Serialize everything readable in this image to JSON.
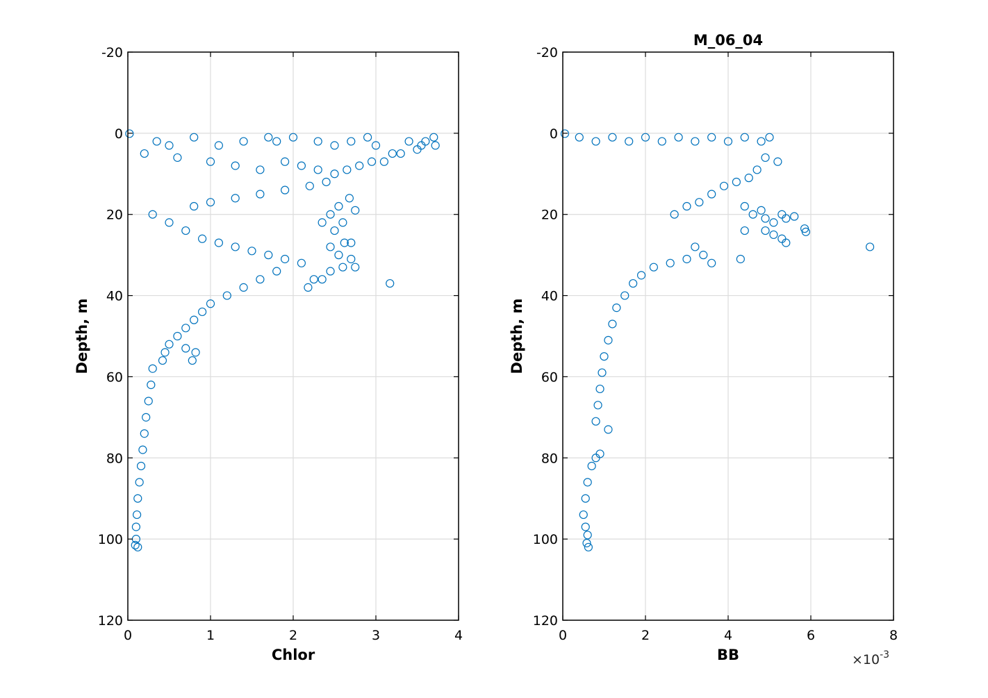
{
  "figure": {
    "marker_color": "#0072BD",
    "grid_color": "#DCDCDC",
    "axis_color": "#000000"
  },
  "chart_data": [
    {
      "type": "scatter",
      "title": "",
      "xlabel": "Chlor",
      "ylabel": "Depth, m",
      "xlim": [
        0,
        4
      ],
      "ylim": [
        -20,
        120
      ],
      "y_reversed": true,
      "grid": true,
      "xticks": [
        0,
        1,
        2,
        3,
        4
      ],
      "yticks": [
        -20,
        0,
        20,
        40,
        60,
        80,
        100,
        120
      ],
      "xtick_labels": [
        "0",
        "1",
        "2",
        "3",
        "4"
      ],
      "ytick_labels": [
        "-20",
        "0",
        "20",
        "40",
        "60",
        "80",
        "100",
        "120"
      ],
      "marker": "circle-open",
      "points": [
        [
          0.02,
          0.1
        ],
        [
          0.35,
          2
        ],
        [
          0.5,
          3
        ],
        [
          0.8,
          1
        ],
        [
          1.1,
          3
        ],
        [
          1.4,
          2
        ],
        [
          1.7,
          1
        ],
        [
          1.8,
          2
        ],
        [
          2.0,
          1
        ],
        [
          2.3,
          2
        ],
        [
          2.5,
          3
        ],
        [
          2.7,
          2
        ],
        [
          2.9,
          1
        ],
        [
          3.0,
          3
        ],
        [
          3.2,
          5
        ],
        [
          3.4,
          2
        ],
        [
          3.5,
          4
        ],
        [
          3.6,
          2
        ],
        [
          3.7,
          1
        ],
        [
          3.72,
          3
        ],
        [
          3.55,
          3
        ],
        [
          3.3,
          5
        ],
        [
          3.1,
          7
        ],
        [
          2.95,
          7
        ],
        [
          2.8,
          8
        ],
        [
          2.65,
          9
        ],
        [
          0.2,
          5
        ],
        [
          0.6,
          6
        ],
        [
          1.0,
          7
        ],
        [
          1.3,
          8
        ],
        [
          1.6,
          9
        ],
        [
          1.9,
          7
        ],
        [
          2.1,
          8
        ],
        [
          2.3,
          9
        ],
        [
          2.5,
          10
        ],
        [
          2.4,
          12
        ],
        [
          2.2,
          13
        ],
        [
          1.9,
          14
        ],
        [
          1.6,
          15
        ],
        [
          1.3,
          16
        ],
        [
          1.0,
          17
        ],
        [
          0.8,
          18
        ],
        [
          2.68,
          16
        ],
        [
          2.55,
          18
        ],
        [
          2.75,
          19
        ],
        [
          2.45,
          20
        ],
        [
          2.6,
          22
        ],
        [
          2.35,
          22
        ],
        [
          2.5,
          24
        ],
        [
          2.62,
          27
        ],
        [
          2.7,
          27
        ],
        [
          2.45,
          28
        ],
        [
          2.55,
          30
        ],
        [
          2.7,
          31
        ],
        [
          2.75,
          33
        ],
        [
          2.6,
          33
        ],
        [
          2.45,
          34
        ],
        [
          2.35,
          36
        ],
        [
          2.25,
          36
        ],
        [
          2.18,
          38
        ],
        [
          3.17,
          37
        ],
        [
          0.3,
          20
        ],
        [
          0.5,
          22
        ],
        [
          0.7,
          24
        ],
        [
          0.9,
          26
        ],
        [
          1.1,
          27
        ],
        [
          1.3,
          28
        ],
        [
          1.5,
          29
        ],
        [
          1.7,
          30
        ],
        [
          1.9,
          31
        ],
        [
          2.1,
          32
        ],
        [
          1.8,
          34
        ],
        [
          1.6,
          36
        ],
        [
          1.4,
          38
        ],
        [
          1.2,
          40
        ],
        [
          1.0,
          42
        ],
        [
          0.9,
          44
        ],
        [
          0.8,
          46
        ],
        [
          0.7,
          48
        ],
        [
          0.6,
          50
        ],
        [
          0.5,
          52
        ],
        [
          0.45,
          54
        ],
        [
          0.42,
          56
        ],
        [
          0.82,
          54
        ],
        [
          0.78,
          56
        ],
        [
          0.7,
          53
        ],
        [
          0.3,
          58
        ],
        [
          0.28,
          62
        ],
        [
          0.25,
          66
        ],
        [
          0.22,
          70
        ],
        [
          0.2,
          74
        ],
        [
          0.18,
          78
        ],
        [
          0.16,
          82
        ],
        [
          0.14,
          86
        ],
        [
          0.12,
          90
        ],
        [
          0.11,
          94
        ],
        [
          0.1,
          97
        ],
        [
          0.1,
          100
        ],
        [
          0.09,
          101.5
        ],
        [
          0.12,
          102
        ]
      ]
    },
    {
      "type": "scatter",
      "title": "M_06_04",
      "xlabel": "BB",
      "ylabel": "Depth, m",
      "xlim": [
        0,
        0.008
      ],
      "ylim": [
        -20,
        120
      ],
      "y_reversed": true,
      "grid": true,
      "xticks": [
        0,
        0.002,
        0.004,
        0.006,
        0.008
      ],
      "yticks": [
        -20,
        0,
        20,
        40,
        60,
        80,
        100,
        120
      ],
      "xtick_labels": [
        "0",
        "2",
        "4",
        "6",
        "8"
      ],
      "ytick_labels": [
        "-20",
        "0",
        "20",
        "40",
        "60",
        "80",
        "100",
        "120"
      ],
      "x_exponent_label": "×10",
      "x_exponent_power": "-3",
      "marker": "circle-open",
      "points": [
        [
          5e-05,
          0.1
        ],
        [
          0.0004,
          1
        ],
        [
          0.0008,
          2
        ],
        [
          0.0012,
          1
        ],
        [
          0.0016,
          2
        ],
        [
          0.002,
          1
        ],
        [
          0.0024,
          2
        ],
        [
          0.0028,
          1
        ],
        [
          0.0032,
          2
        ],
        [
          0.0036,
          1
        ],
        [
          0.004,
          2
        ],
        [
          0.0044,
          1
        ],
        [
          0.0048,
          2
        ],
        [
          0.005,
          1
        ],
        [
          0.0052,
          7
        ],
        [
          0.0049,
          6
        ],
        [
          0.0047,
          9
        ],
        [
          0.0045,
          11
        ],
        [
          0.0042,
          12
        ],
        [
          0.0039,
          13
        ],
        [
          0.0036,
          15
        ],
        [
          0.0033,
          17
        ],
        [
          0.003,
          18
        ],
        [
          0.0027,
          20
        ],
        [
          0.0044,
          18
        ],
        [
          0.0046,
          20
        ],
        [
          0.0048,
          19
        ],
        [
          0.0049,
          21
        ],
        [
          0.0051,
          22
        ],
        [
          0.0053,
          20
        ],
        [
          0.0054,
          21
        ],
        [
          0.0056,
          20.5
        ],
        [
          0.0053,
          26
        ],
        [
          0.0054,
          27
        ],
        [
          0.0051,
          25
        ],
        [
          0.0049,
          24
        ],
        [
          0.0044,
          24
        ],
        [
          0.0043,
          31
        ],
        [
          0.00585,
          23.5
        ],
        [
          0.00588,
          24.3
        ],
        [
          0.00743,
          28
        ],
        [
          0.0032,
          28
        ],
        [
          0.0034,
          30
        ],
        [
          0.0036,
          32
        ],
        [
          0.003,
          31
        ],
        [
          0.0026,
          32
        ],
        [
          0.0022,
          33
        ],
        [
          0.0019,
          35
        ],
        [
          0.0017,
          37
        ],
        [
          0.0015,
          40
        ],
        [
          0.0013,
          43
        ],
        [
          0.0012,
          47
        ],
        [
          0.0011,
          51
        ],
        [
          0.001,
          55
        ],
        [
          0.00095,
          59
        ],
        [
          0.0009,
          63
        ],
        [
          0.00085,
          67
        ],
        [
          0.0008,
          71
        ],
        [
          0.0011,
          73
        ],
        [
          0.0009,
          79
        ],
        [
          0.0008,
          80
        ],
        [
          0.0007,
          82
        ],
        [
          0.0006,
          86
        ],
        [
          0.00055,
          90
        ],
        [
          0.0005,
          94
        ],
        [
          0.00055,
          97
        ],
        [
          0.0006,
          99
        ],
        [
          0.00058,
          101
        ],
        [
          0.00062,
          102
        ]
      ]
    }
  ]
}
